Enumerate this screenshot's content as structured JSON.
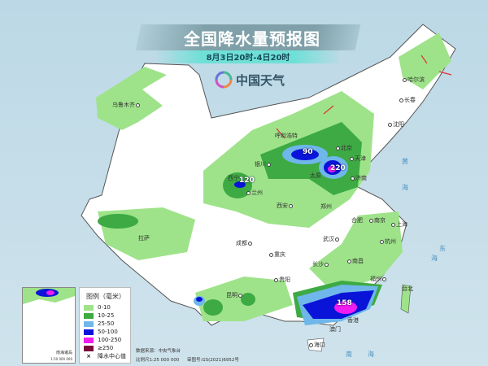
{
  "header": {
    "title": "全国降水量预报图",
    "subtitle": "8月3日20时-4日20时"
  },
  "logo": {
    "text": "中国天气",
    "icon": "pinwheel-logo-icon"
  },
  "legend": {
    "title": "图例（毫米）",
    "items": [
      {
        "label": "0-10",
        "color": "#9ee38a"
      },
      {
        "label": "10-25",
        "color": "#3daa43"
      },
      {
        "label": "25-50",
        "color": "#6fb7ea"
      },
      {
        "label": "50-100",
        "color": "#0a14d8"
      },
      {
        "label": "100-250",
        "color": "#f01cf0"
      },
      {
        "label": "≥250",
        "color": "#7a0a3a"
      }
    ],
    "center_label": "降水中心值",
    "center_icon": "x-mark-icon"
  },
  "inset": {
    "title": "南海诸岛",
    "scale": "1:50 000 000"
  },
  "source": {
    "data": "数据来源：中央气象台",
    "scale": "比例尺1:25 000 000",
    "approval": "审图号:GS(2021)6952号"
  },
  "rain_centers": [
    "90",
    "220",
    "120",
    "158"
  ],
  "cities": [
    "乌鲁木齐",
    "呼和浩特",
    "北京",
    "天津",
    "银川",
    "太原",
    "西宁",
    "兰州",
    "济南",
    "西安",
    "郑州",
    "合肥",
    "南京",
    "上海",
    "武汉",
    "杭州",
    "长沙",
    "南昌",
    "福州",
    "台北",
    "成都",
    "重庆",
    "贵阳",
    "昆明",
    "拉萨",
    "哈尔滨",
    "长春",
    "沈阳",
    "香港",
    "澳门",
    "海口"
  ],
  "seas": [
    "东",
    "海",
    "南",
    "海",
    "黄",
    "海"
  ]
}
